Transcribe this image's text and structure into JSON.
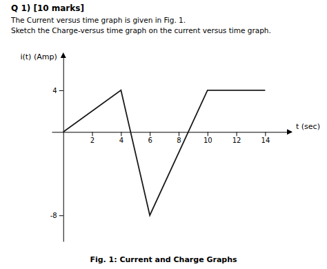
{
  "chart_data": {
    "type": "line",
    "title": "Q 1) [10 marks]",
    "subtitle": [
      "The Current versus time graph is given in Fig. 1.",
      "Sketch the Charge-versus time graph on the current versus time graph."
    ],
    "annotations": [
      "Fig. 1: Current and Charge Graphs"
    ],
    "xlabel": "t (sec)",
    "ylabel": "i(t) (Amp)",
    "x": [
      0,
      4,
      6,
      10,
      12,
      14
    ],
    "values": [
      0,
      4,
      -8,
      4,
      4,
      4
    ],
    "color": "#1a1a1a",
    "xlim": [
      -0.8,
      15.8
    ],
    "ylim": [
      -10.5,
      7.5
    ],
    "xticks": [
      2,
      4,
      6,
      8,
      10,
      12,
      14
    ],
    "yticks": [
      -8,
      4
    ],
    "grid": false
  }
}
